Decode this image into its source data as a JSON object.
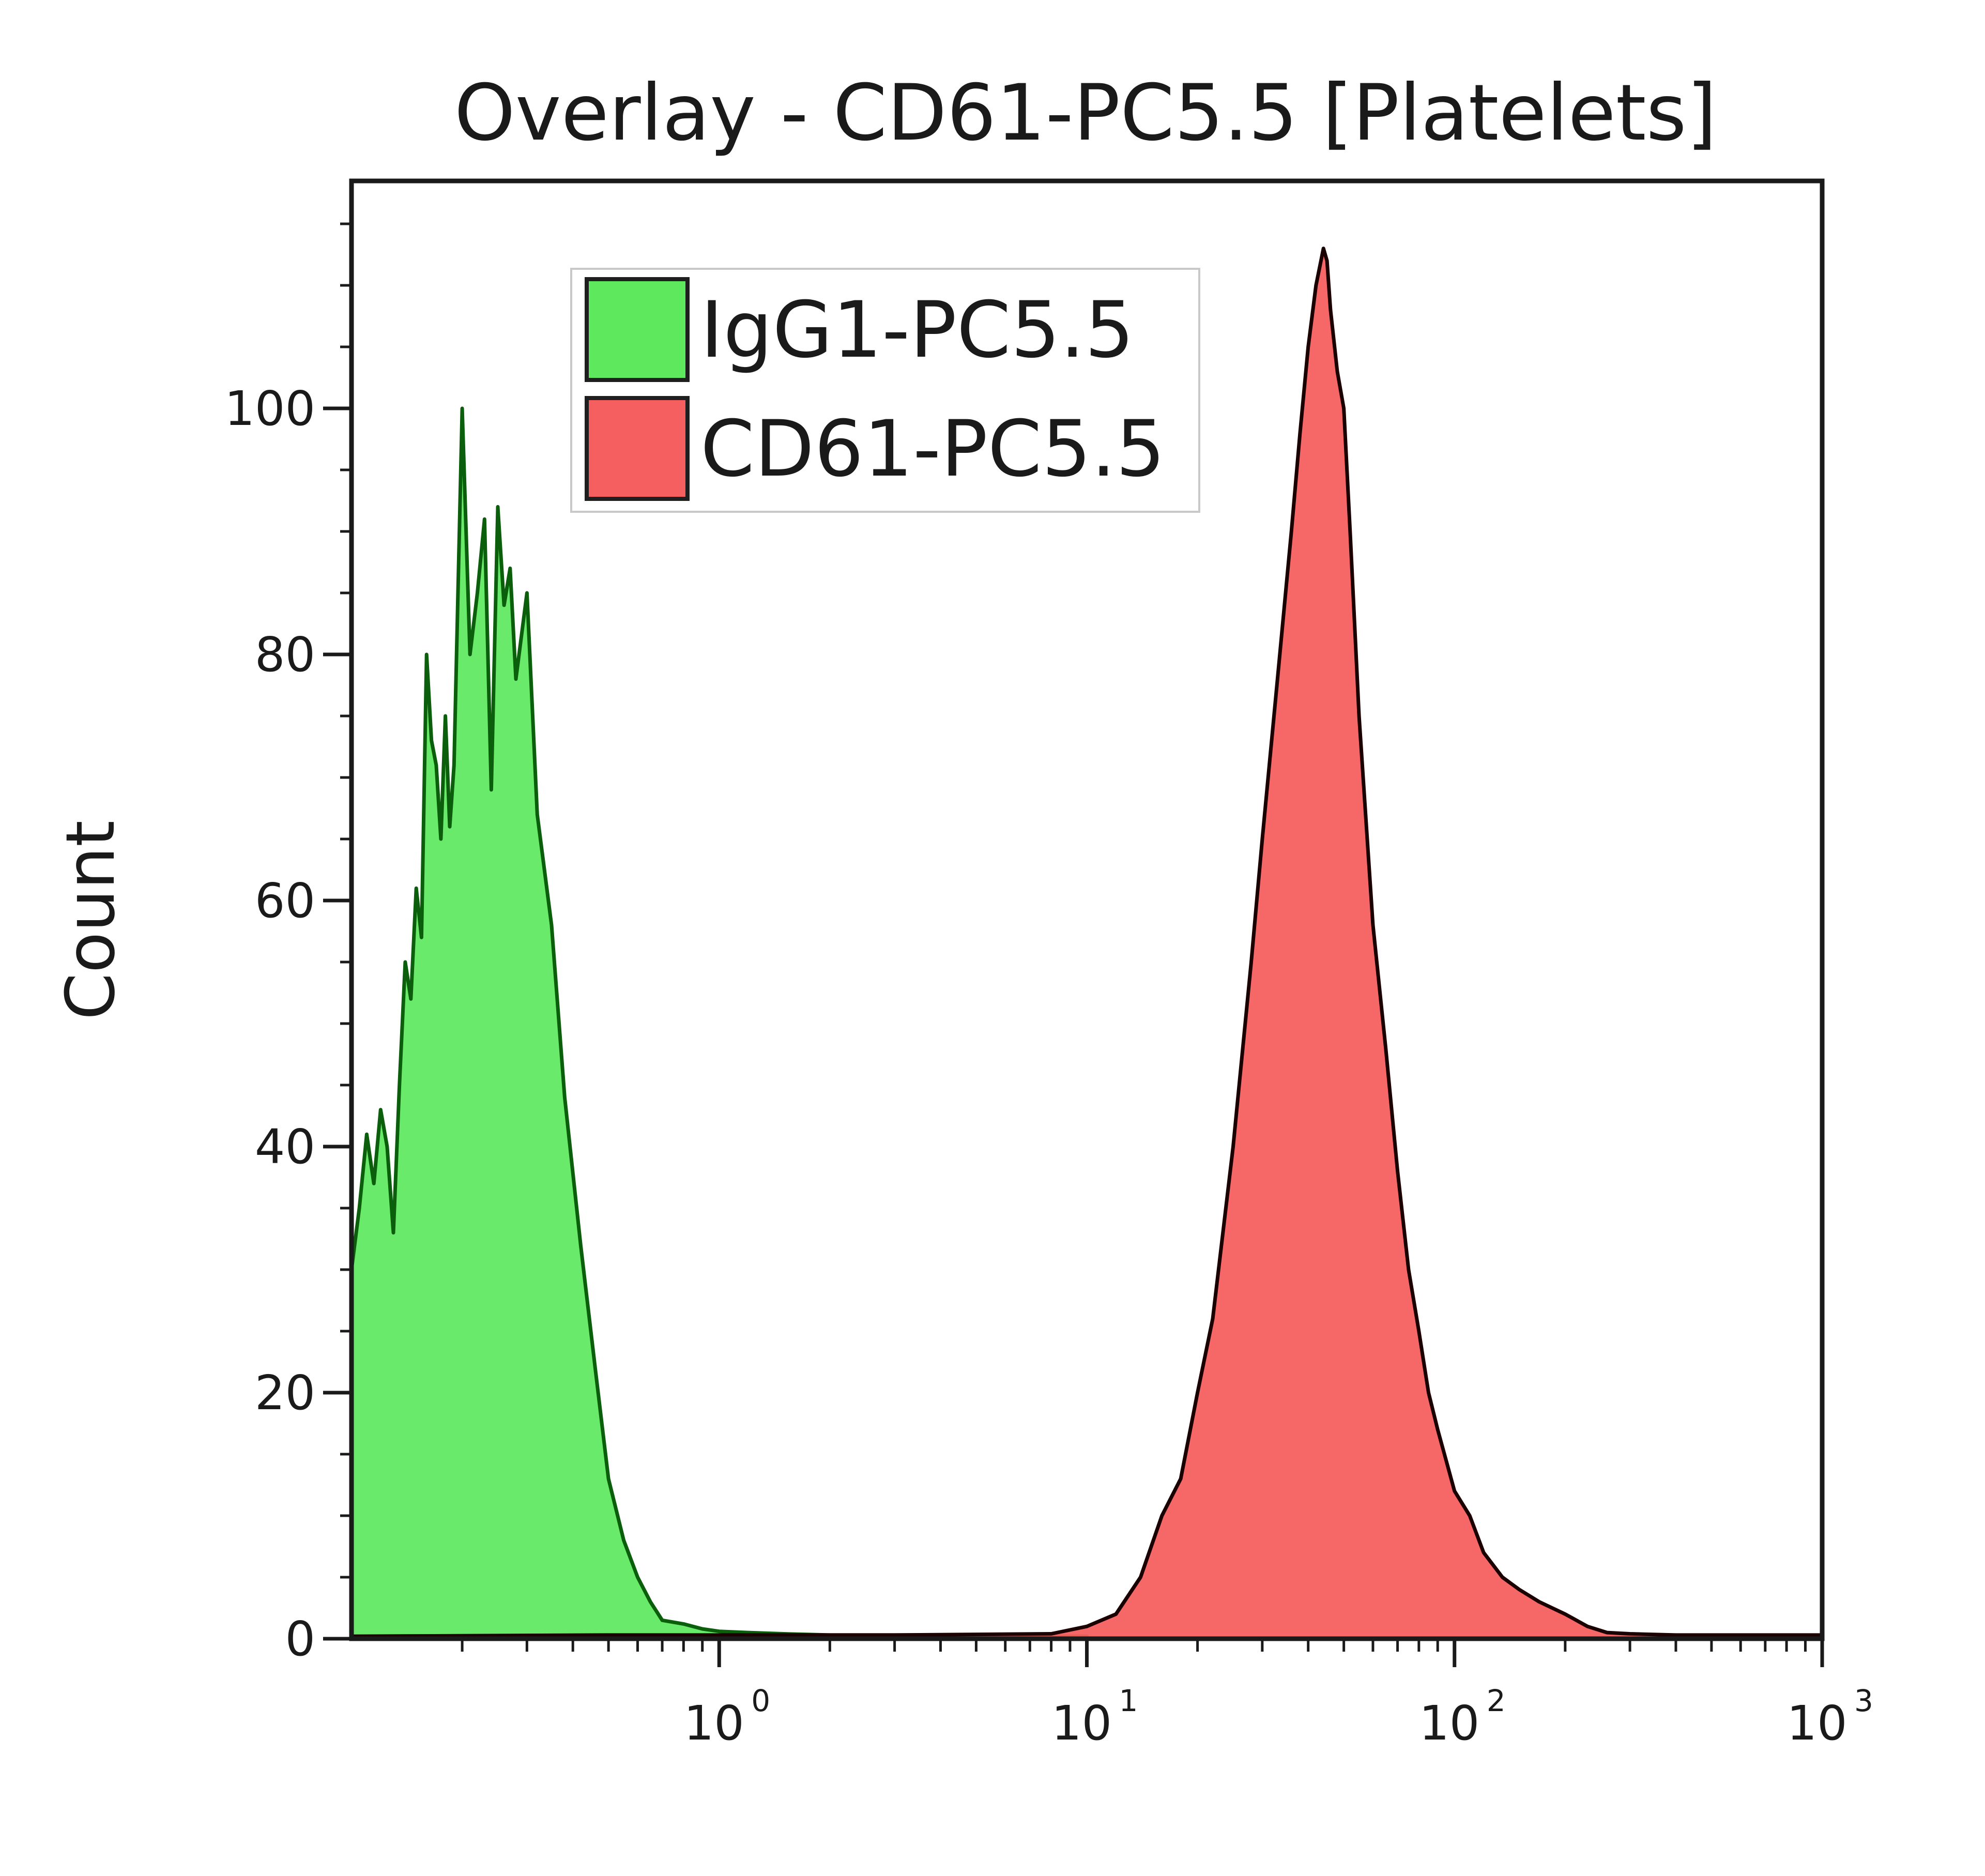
{
  "chart_data": {
    "type": "area",
    "title": "Overlay - CD61-PC5.5 [Platelets]",
    "xlabel": "",
    "ylabel": "Count",
    "x_scale": "log",
    "xlim": [
      0.1,
      1000
    ],
    "ylim": [
      0,
      120
    ],
    "x_ticks": [
      {
        "value": 1,
        "base": "10",
        "exp": "0"
      },
      {
        "value": 10,
        "base": "10",
        "exp": "1"
      },
      {
        "value": 100,
        "base": "10",
        "exp": "2"
      },
      {
        "value": 1000,
        "base": "10",
        "exp": "3"
      }
    ],
    "y_ticks": [
      0,
      20,
      40,
      60,
      80,
      100
    ],
    "grid": false,
    "legend_position": "top-left",
    "series": [
      {
        "name": "IgG1-PC5.5",
        "color": "#5de85d",
        "edge_color": "#0b5e0b",
        "x": [
          0.1,
          0.105,
          0.11,
          0.115,
          0.12,
          0.125,
          0.13,
          0.135,
          0.14,
          0.145,
          0.15,
          0.155,
          0.16,
          0.165,
          0.17,
          0.175,
          0.18,
          0.185,
          0.19,
          0.2,
          0.21,
          0.22,
          0.23,
          0.24,
          0.25,
          0.26,
          0.27,
          0.28,
          0.3,
          0.32,
          0.35,
          0.38,
          0.42,
          0.46,
          0.5,
          0.55,
          0.6,
          0.65,
          0.7,
          0.8,
          0.9,
          1.0,
          1.2,
          1.5,
          2,
          3,
          5,
          8,
          10
        ],
        "values": [
          30,
          35,
          41,
          37,
          43,
          40,
          33,
          45,
          55,
          52,
          61,
          57,
          80,
          73,
          71,
          65,
          75,
          66,
          71,
          100,
          80,
          85,
          91,
          69,
          92,
          84,
          87,
          78,
          85,
          67,
          58,
          44,
          32,
          22,
          13,
          8,
          5,
          3,
          1.5,
          1.2,
          0.8,
          0.6,
          0.5,
          0.4,
          0.3,
          0.3,
          0.3,
          0.2,
          0.2
        ]
      },
      {
        "name": "CD61-PC5.5",
        "color": "#f55f5f",
        "edge_color": "#1a0000",
        "x": [
          0.1,
          0.5,
          1,
          3,
          8,
          10,
          12,
          14,
          16,
          18,
          20,
          22,
          25,
          28,
          30,
          33,
          36,
          38,
          40,
          42,
          44,
          45,
          46,
          48,
          50,
          52,
          55,
          60,
          65,
          70,
          75,
          80,
          85,
          90,
          100,
          110,
          120,
          135,
          150,
          170,
          200,
          230,
          260,
          300,
          400,
          500,
          1000
        ],
        "values": [
          0.2,
          0.3,
          0.3,
          0.3,
          0.4,
          1,
          2,
          5,
          10,
          13,
          20,
          26,
          40,
          55,
          65,
          78,
          90,
          98,
          105,
          110,
          113,
          112,
          108,
          103,
          100,
          90,
          75,
          58,
          48,
          38,
          30,
          25,
          20,
          17,
          12,
          10,
          7,
          5,
          4,
          3,
          2,
          1,
          0.5,
          0.4,
          0.3,
          0.3,
          0.3
        ]
      }
    ]
  }
}
